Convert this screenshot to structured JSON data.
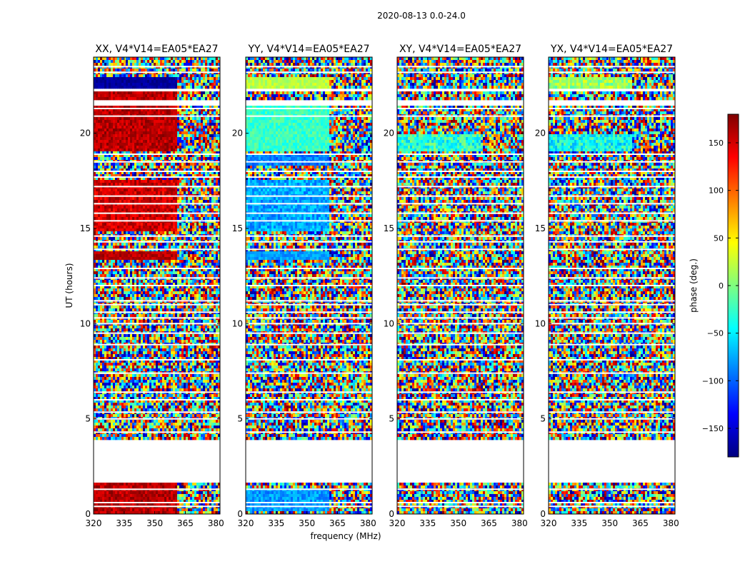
{
  "figure": {
    "suptitle": "2020-08-13 0.0-24.0",
    "xlabel": "frequency (MHz)",
    "ylabel": "UT (hours)"
  },
  "colorbar": {
    "label": "phase (deg.)",
    "ticks": [
      150,
      100,
      50,
      0,
      -50,
      -100,
      -150
    ],
    "tick_labels": [
      "150",
      "100",
      "50",
      "0",
      "−50",
      "−100",
      "−150"
    ],
    "range": [
      -180,
      180
    ],
    "colormap": "jet",
    "colors": [
      "#00007f",
      "#0000ff",
      "#007fff",
      "#00ffff",
      "#7fff7f",
      "#ffff00",
      "#ff7f00",
      "#ff0000",
      "#7f0000"
    ]
  },
  "chart_data": [
    {
      "type": "heatmap",
      "title": "XX, V4*V14=EA05*EA27",
      "xlabel": "frequency (MHz)",
      "ylabel": "UT (hours)",
      "xlim": [
        320,
        382
      ],
      "ylim": [
        0,
        24
      ],
      "xticks": [
        320,
        335,
        350,
        365,
        380
      ],
      "yticks": [
        0,
        5,
        10,
        15,
        20
      ],
      "value": "phase (deg.)",
      "bands": [
        {
          "ut": [
            0.0,
            1.6
          ],
          "phase_deg": 160,
          "spread_deg": 40,
          "structured_above_mhz": 361
        },
        {
          "ut": [
            13.4,
            13.8
          ],
          "phase_deg": 160,
          "spread_deg": 30,
          "structured_above_mhz": 361
        },
        {
          "ut": [
            14.8,
            17.6
          ],
          "phase_deg": 150,
          "spread_deg": 50,
          "structured_above_mhz": 361
        },
        {
          "ut": [
            19.0,
            21.6
          ],
          "phase_deg": 160,
          "spread_deg": 40,
          "structured_above_mhz": 361
        },
        {
          "ut": [
            21.7,
            22.2
          ],
          "phase_deg": 160,
          "spread_deg": 40,
          "structured_above_mhz": 361
        },
        {
          "ut": [
            22.3,
            23.0
          ],
          "phase_deg": -170,
          "spread_deg": 20,
          "structured_above_mhz": 361
        }
      ]
    },
    {
      "type": "heatmap",
      "title": "YY, V4*V14=EA05*EA27",
      "xlabel": "frequency (MHz)",
      "ylabel": "UT (hours)",
      "xlim": [
        320,
        382
      ],
      "ylim": [
        0,
        24
      ],
      "xticks": [
        320,
        335,
        350,
        365,
        380
      ],
      "yticks": [
        0,
        5,
        10,
        15,
        20
      ],
      "value": "phase (deg.)",
      "bands": [
        {
          "ut": [
            0.2,
            1.4
          ],
          "phase_deg": -80,
          "spread_deg": 40,
          "structured_above_mhz": 361
        },
        {
          "ut": [
            13.4,
            13.8
          ],
          "phase_deg": -80,
          "spread_deg": 30,
          "structured_above_mhz": 361
        },
        {
          "ut": [
            14.8,
            17.6
          ],
          "phase_deg": -75,
          "spread_deg": 50,
          "structured_above_mhz": 361
        },
        {
          "ut": [
            18.3,
            18.9
          ],
          "phase_deg": -90,
          "spread_deg": 40,
          "structured_above_mhz": 361
        },
        {
          "ut": [
            19.0,
            21.6
          ],
          "phase_deg": -25,
          "spread_deg": 40,
          "structured_above_mhz": 361
        },
        {
          "ut": [
            22.3,
            23.0
          ],
          "phase_deg": 20,
          "spread_deg": 30,
          "structured_above_mhz": 361
        }
      ]
    },
    {
      "type": "heatmap",
      "title": "XY, V4*V14=EA05*EA27",
      "xlabel": "frequency (MHz)",
      "ylabel": "UT (hours)",
      "xlim": [
        320,
        382
      ],
      "ylim": [
        0,
        24
      ],
      "xticks": [
        320,
        335,
        350,
        365,
        380
      ],
      "yticks": [
        0,
        5,
        10,
        15,
        20
      ],
      "value": "phase (deg.)",
      "bands": [
        {
          "ut": [
            19.0,
            20.0
          ],
          "phase_deg": -30,
          "spread_deg": 70,
          "structured_above_mhz": 361
        }
      ]
    },
    {
      "type": "heatmap",
      "title": "YX, V4*V14=EA05*EA27",
      "xlabel": "frequency (MHz)",
      "ylabel": "UT (hours)",
      "xlim": [
        320,
        382
      ],
      "ylim": [
        0,
        24
      ],
      "xticks": [
        320,
        335,
        350,
        365,
        380
      ],
      "yticks": [
        0,
        5,
        10,
        15,
        20
      ],
      "value": "phase (deg.)",
      "bands": [
        {
          "ut": [
            19.0,
            20.0
          ],
          "phase_deg": -40,
          "spread_deg": 70,
          "structured_above_mhz": 361
        },
        {
          "ut": [
            22.3,
            23.0
          ],
          "phase_deg": 10,
          "spread_deg": 60,
          "structured_above_mhz": 361
        }
      ]
    }
  ],
  "shared": {
    "flagged_ut": [
      [
        1.6,
        3.95
      ],
      [
        21.5,
        21.7
      ],
      [
        22.2,
        22.3
      ]
    ],
    "flagged_lines_ut": [
      0.4,
      0.6,
      1.3,
      4.3,
      5.0,
      5.35,
      6.0,
      6.4,
      7.4,
      8.1,
      8.9,
      9.5,
      10.0,
      10.3,
      10.6,
      11.0,
      11.2,
      12.0,
      12.4,
      12.9,
      13.9,
      14.3,
      14.6,
      15.4,
      15.8,
      16.3,
      16.7,
      17.2,
      17.7,
      18.0,
      18.5,
      18.9,
      20.9,
      21.3,
      23.2,
      23.5
    ]
  }
}
